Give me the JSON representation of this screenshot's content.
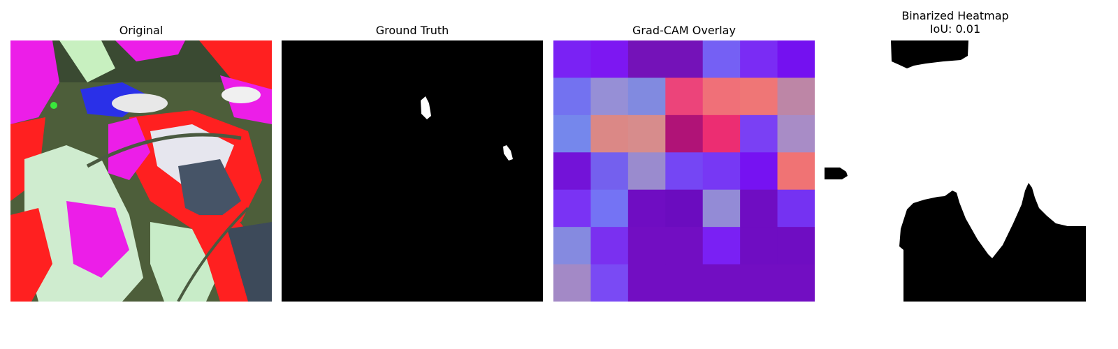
{
  "panels": [
    {
      "title": "Original",
      "subtitle": ""
    },
    {
      "title": "Ground Truth",
      "subtitle": ""
    },
    {
      "title": "Grad-CAM Overlay",
      "subtitle": ""
    },
    {
      "title": "Binarized Heatmap",
      "subtitle": "IoU: 0.01"
    }
  ],
  "heatmap_grid": {
    "rows": 7,
    "cols": 7,
    "colors": [
      [
        "#7a22f4",
        "#7d17f2",
        "#7412b8",
        "#7412b8",
        "#7560f4",
        "#7a2cf4",
        "#7411f0"
      ],
      [
        "#7372f0",
        "#968fd6",
        "#818ae0",
        "#ec447a",
        "#f07078",
        "#ef7676",
        "#bd86a6"
      ],
      [
        "#7587ec",
        "#db8886",
        "#d78c8c",
        "#b01377",
        "#ec2d72",
        "#7a40f4",
        "#a88cc6"
      ],
      [
        "#7313d8",
        "#7460ee",
        "#9a8bce",
        "#7546f4",
        "#7738f4",
        "#7612f2",
        "#f07374"
      ],
      [
        "#7a33f4",
        "#7473f4",
        "#6f0dc2",
        "#6b0cbf",
        "#938bd6",
        "#6f0dc2",
        "#7532f2"
      ],
      [
        "#858ae0",
        "#7a30f0",
        "#720ec2",
        "#720ec2",
        "#7a20f4",
        "#6f0dc2",
        "#6f0dc2"
      ],
      [
        "#a389c6",
        "#7a4af4",
        "#720ec2",
        "#720ec2",
        "#720ec2",
        "#720ec2",
        "#720ec2"
      ]
    ]
  }
}
